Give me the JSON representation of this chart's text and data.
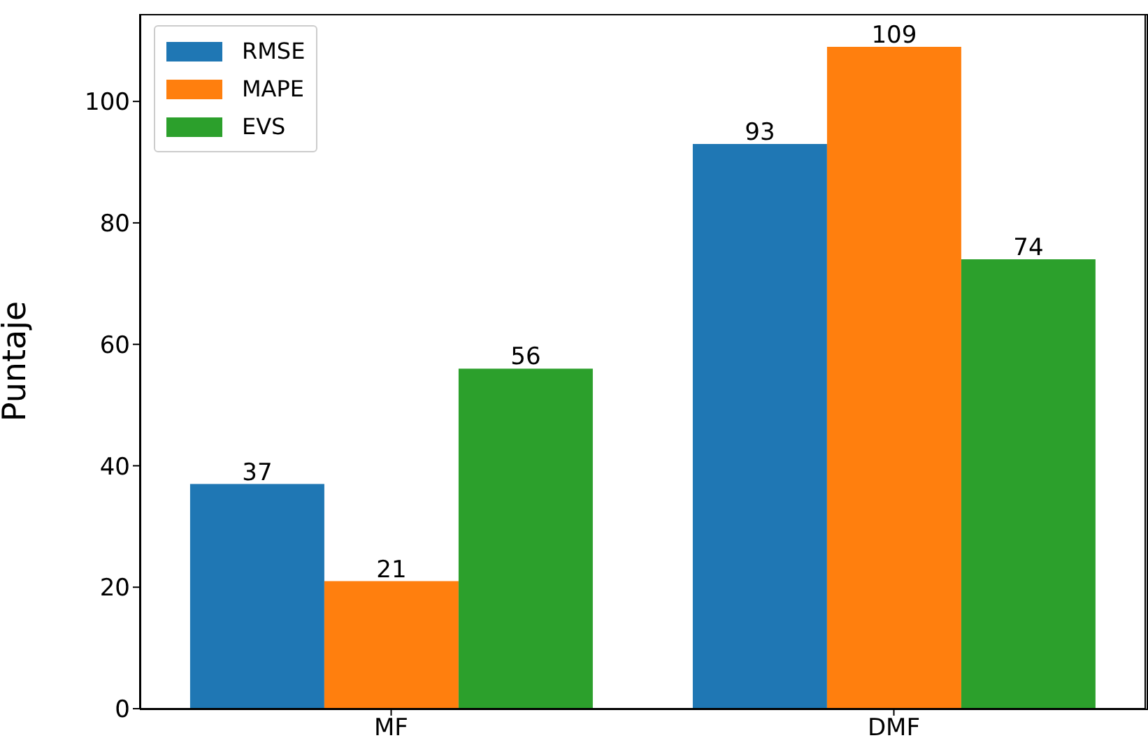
{
  "chart_data": {
    "type": "bar",
    "ylabel": "Puntaje",
    "categories": [
      "MF",
      "DMF"
    ],
    "series": [
      {
        "name": "RMSE",
        "color": "#1f77b4",
        "values": [
          37,
          93
        ]
      },
      {
        "name": "MAPE",
        "color": "#ff7f0e",
        "values": [
          21,
          109
        ]
      },
      {
        "name": "EVS",
        "color": "#2ca02c",
        "values": [
          56,
          74
        ]
      }
    ],
    "ylim": [
      0,
      114.4
    ],
    "yticks": [
      0,
      20,
      40,
      60,
      80,
      100
    ],
    "data_labels": true,
    "legend": "top left",
    "grid": false
  }
}
